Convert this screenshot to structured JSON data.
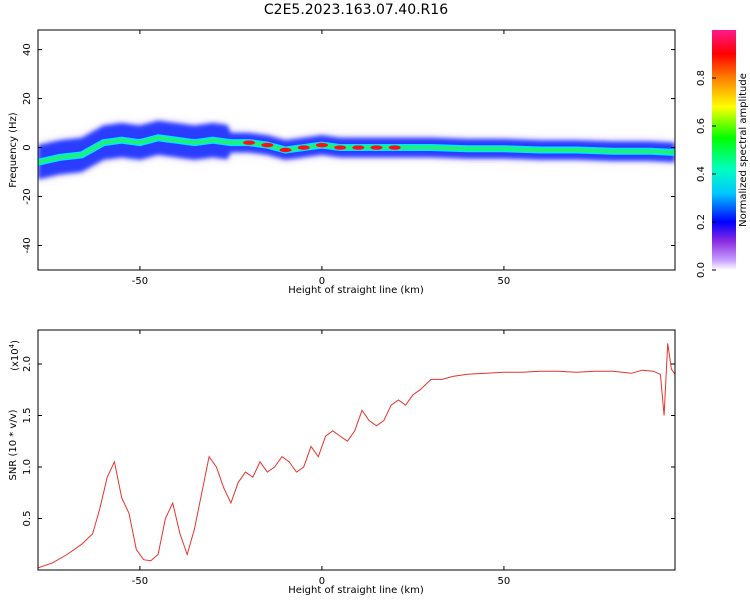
{
  "title": "C2E5.2023.163.07.40.R16",
  "chart_data": [
    {
      "type": "heatmap",
      "xlabel": "Height of straight line (km)",
      "ylabel": "Frequency (Hz)",
      "xlim": [
        -78,
        97
      ],
      "ylim": [
        -50,
        48
      ],
      "xticks": [
        -50,
        0,
        50
      ],
      "yticks": [
        -40,
        -20,
        0,
        20,
        40
      ],
      "colorbar": {
        "label": "Normalized spectral amplitude",
        "range": [
          0,
          1
        ],
        "ticks": [
          "0.0",
          "0.2",
          "0.4",
          "0.6",
          "0.8"
        ]
      },
      "ridge": {
        "x": [
          -78,
          -72,
          -66,
          -60,
          -55,
          -50,
          -45,
          -40,
          -35,
          -30,
          -25,
          -20,
          -15,
          -10,
          -5,
          0,
          5,
          10,
          15,
          20,
          30,
          40,
          50,
          60,
          70,
          80,
          90,
          97
        ],
        "frequency": [
          -6,
          -4,
          -3,
          2,
          3,
          2,
          4,
          3,
          2,
          3,
          2,
          2,
          1,
          -1,
          0,
          1,
          0,
          0,
          0,
          0,
          0,
          -0.5,
          -0.5,
          -1,
          -1,
          -1.5,
          -1.5,
          -2
        ]
      }
    },
    {
      "type": "line",
      "xlabel": "Height of straight line (km)",
      "ylabel": "SNR (10 * v/v)",
      "y_multiplier": "(x10",
      "y_multiplier_exp": "4",
      "xlim": [
        -78,
        97
      ],
      "ylim": [
        0,
        23300
      ],
      "xticks": [
        -50,
        0,
        50
      ],
      "yticks": [
        5000,
        10000,
        15000,
        20000
      ],
      "ytick_labels": [
        "0.5",
        "1.0",
        "1.5",
        "2.0"
      ],
      "color": "#e8322d",
      "series": [
        {
          "x": [
            -78,
            -74,
            -70,
            -66,
            -63,
            -61,
            -59,
            -57,
            -55,
            -53,
            -51,
            -49,
            -47,
            -45,
            -43,
            -41,
            -39,
            -37,
            -35,
            -33,
            -31,
            -29,
            -27,
            -25,
            -23,
            -21,
            -19,
            -17,
            -15,
            -13,
            -11,
            -9,
            -7,
            -5,
            -3,
            -1,
            1,
            3,
            5,
            7,
            9,
            11,
            13,
            15,
            17,
            19,
            21,
            23,
            25,
            27,
            30,
            33,
            36,
            40,
            45,
            50,
            55,
            60,
            65,
            70,
            75,
            80,
            85,
            88,
            91,
            93,
            94,
            95,
            96,
            97
          ],
          "values": [
            200,
            700,
            1500,
            2500,
            3500,
            6000,
            9000,
            10500,
            7000,
            5500,
            2000,
            1000,
            900,
            1500,
            5000,
            6500,
            3500,
            1500,
            4000,
            7500,
            11000,
            10000,
            8000,
            6500,
            8500,
            9500,
            9000,
            10500,
            9500,
            10000,
            11000,
            10500,
            9500,
            10000,
            12000,
            11000,
            13000,
            13500,
            13000,
            12500,
            13500,
            15500,
            14500,
            14000,
            14500,
            16000,
            16500,
            16000,
            17000,
            17500,
            18500,
            18500,
            18800,
            19000,
            19100,
            19200,
            19200,
            19300,
            19300,
            19200,
            19300,
            19300,
            19100,
            19400,
            19300,
            19000,
            15000,
            22000,
            19500,
            19000
          ]
        }
      ]
    }
  ]
}
